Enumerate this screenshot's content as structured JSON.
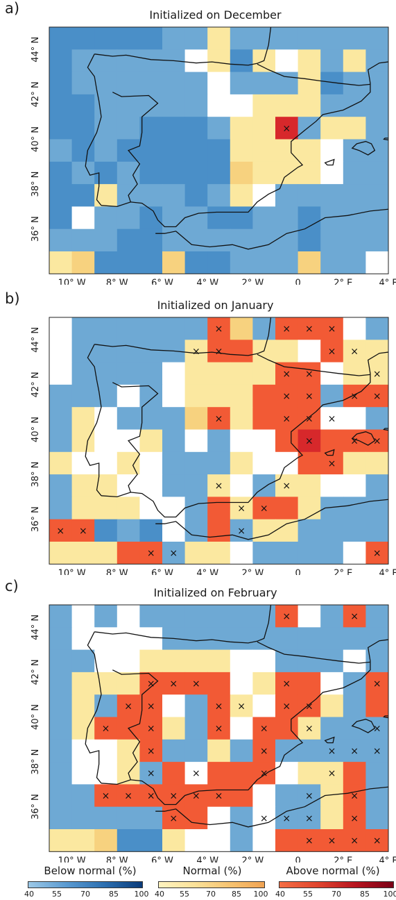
{
  "panels": [
    {
      "letter": "a)",
      "title": "Initialized on December"
    },
    {
      "letter": "b)",
      "title": "Initialized on January"
    },
    {
      "letter": "c)",
      "title": "Initialized on February"
    }
  ],
  "lat_labels": [
    "44° N",
    "42° N",
    "40° N",
    "38° N",
    "36° N"
  ],
  "lon_labels": [
    "10° W",
    "8° W",
    "6° W",
    "4° W",
    "2° W",
    "0",
    "2° E",
    "4° E"
  ],
  "legend": {
    "below": {
      "title": "Below normal (%)",
      "ticks": [
        "40",
        "55",
        "70",
        "85",
        "100"
      ]
    },
    "normal": {
      "title": "Normal (%)",
      "ticks": [
        "40",
        "55",
        "70",
        "85",
        "100"
      ]
    },
    "above": {
      "title": "Above normal (%)",
      "ticks": [
        "40",
        "55",
        "70",
        "85",
        "100"
      ]
    }
  },
  "colors": {
    "below_light": "#6ea9d4",
    "below_mid": "#4a8fc8",
    "normal_light": "#fbe8a0",
    "normal_mid": "#f7d27f",
    "above_light": "#f25a35",
    "above_dark": "#d7282b",
    "white": "#ffffff",
    "coast": "#111111"
  },
  "grid": {
    "cols": 15,
    "rows": 11,
    "lon_start": -11,
    "lat_start": 45
  }
}
